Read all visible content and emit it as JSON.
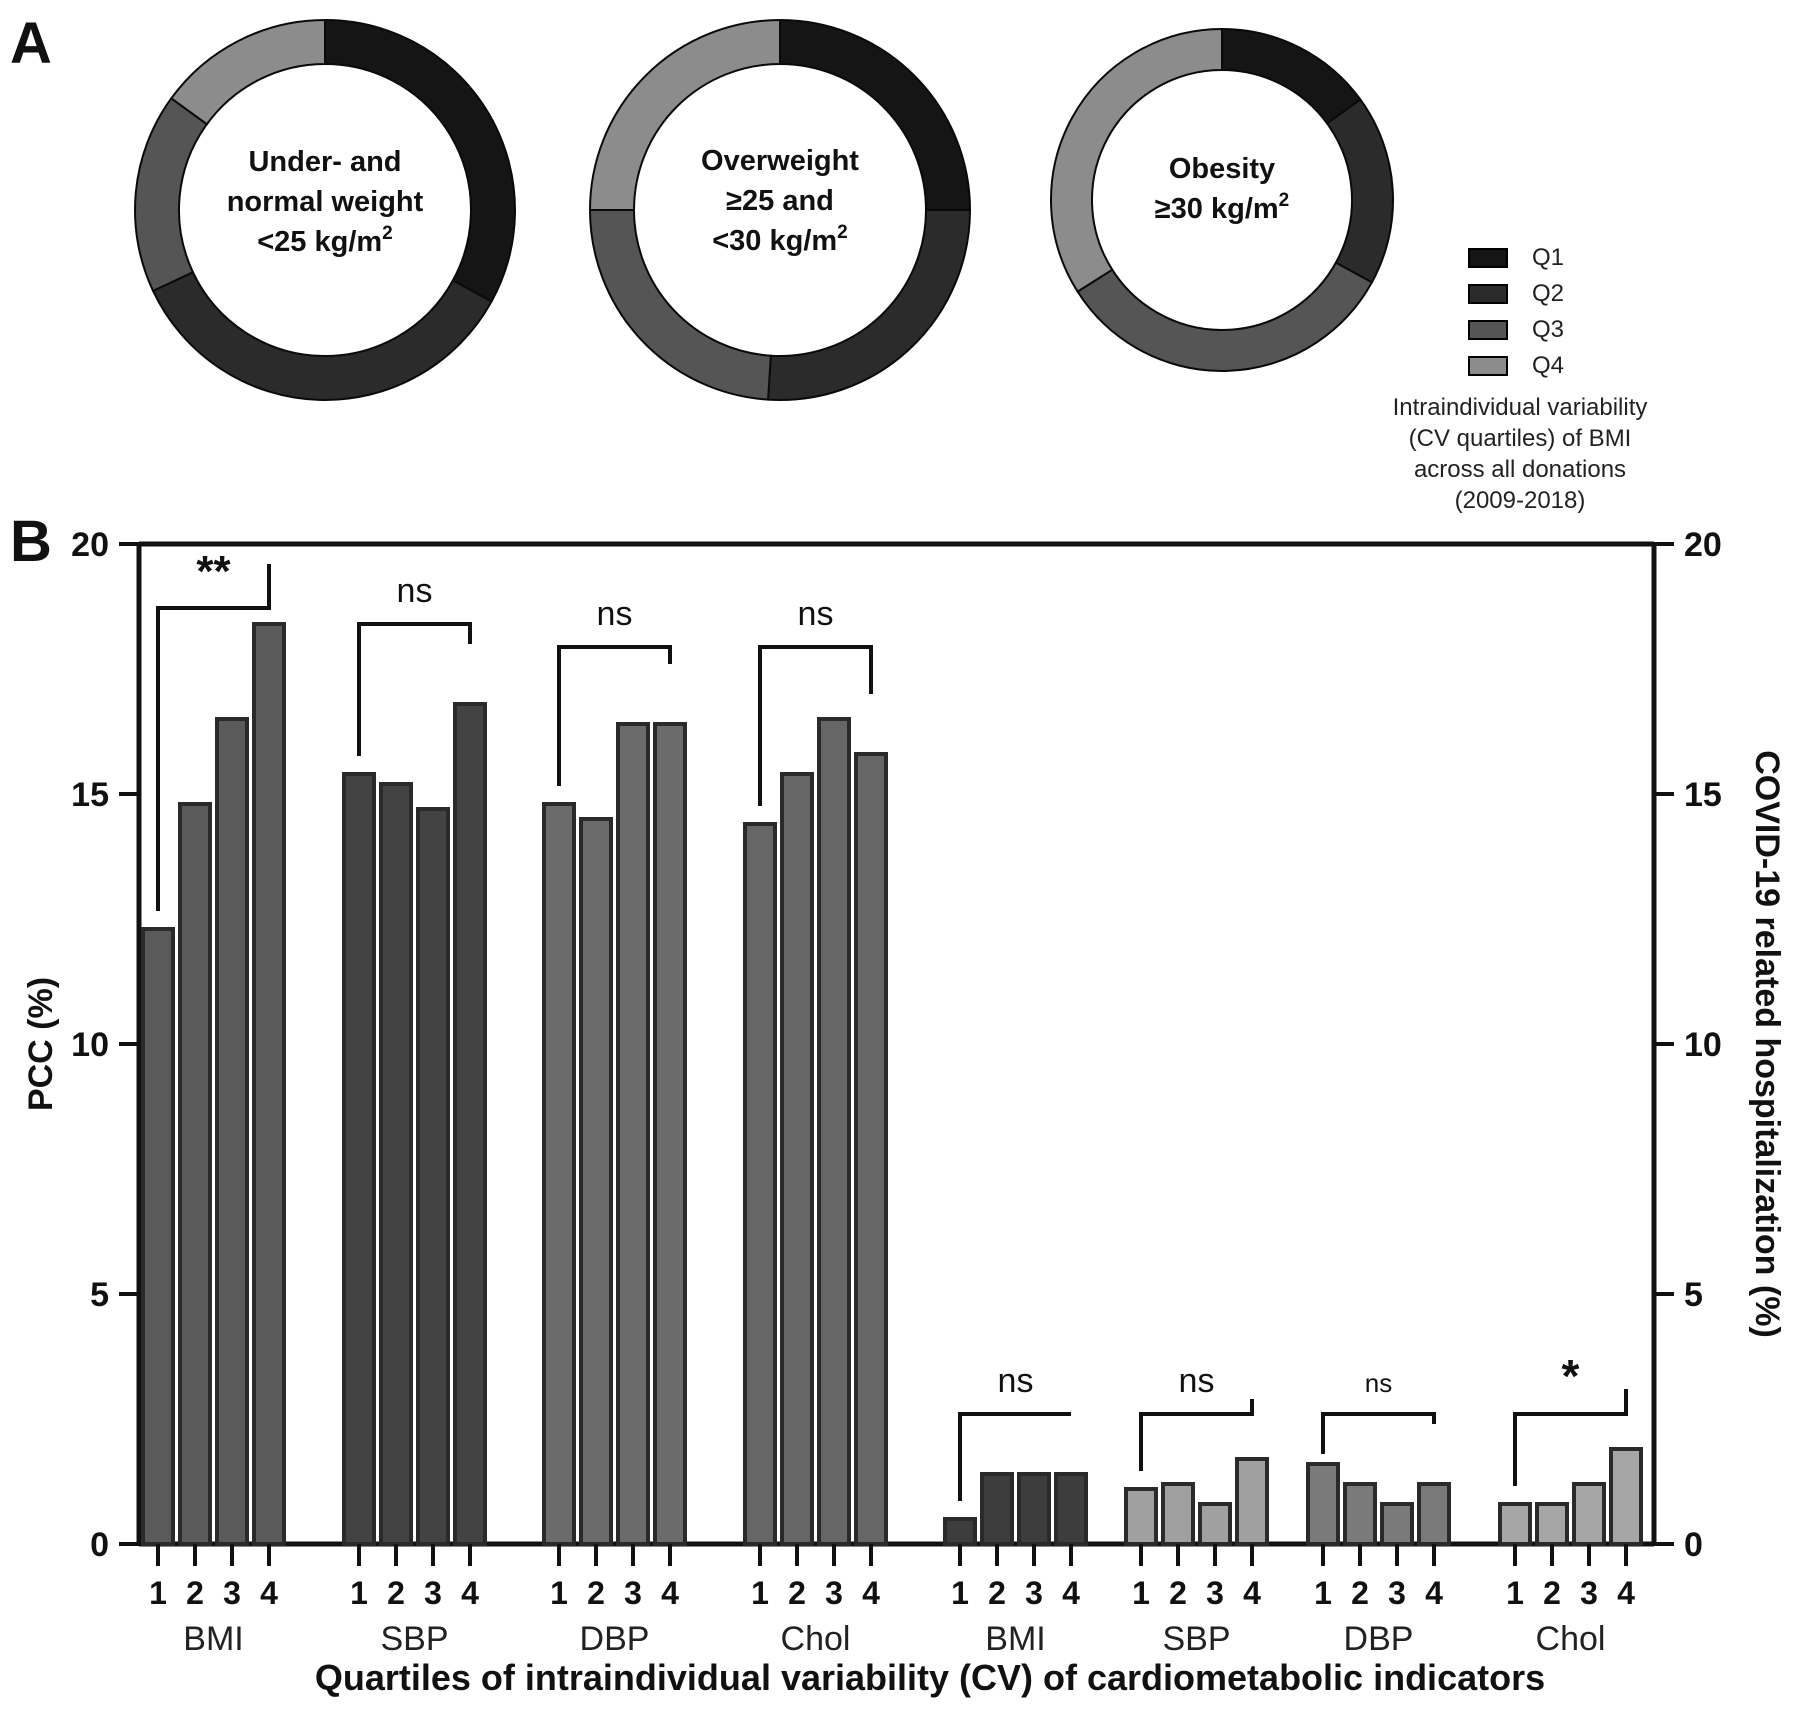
{
  "panels": {
    "a": "A",
    "b": "B"
  },
  "colors": {
    "Q1": "#151515",
    "Q2": "#2b2b2b",
    "Q3": "#555555",
    "Q4": "#8c8c8c"
  },
  "legend": {
    "items": [
      {
        "label": "Q1",
        "color": "#151515"
      },
      {
        "label": "Q2",
        "color": "#2b2b2b"
      },
      {
        "label": "Q3",
        "color": "#555555"
      },
      {
        "label": "Q4",
        "color": "#8c8c8c"
      }
    ],
    "caption": [
      "Intraindividual variability",
      "(CV quartiles) of BMI",
      "across all donations",
      "(2009-2018)"
    ]
  },
  "chart_data": [
    {
      "type": "pie",
      "chart": "donut",
      "labels": [
        "Q1",
        "Q2",
        "Q3",
        "Q4"
      ],
      "donuts": [
        {
          "title_lines": [
            "Under- and",
            "normal weight",
            "<25 kg/m"
          ],
          "title_sup": "2",
          "values": [
            0.33,
            0.35,
            0.17,
            0.15
          ]
        },
        {
          "title_lines": [
            "Overweight",
            "≥25 and",
            "<30 kg/m"
          ],
          "title_sup": "2",
          "values": [
            0.25,
            0.26,
            0.24,
            0.25
          ]
        },
        {
          "title_lines": [
            "Obesity",
            "≥30 kg/m"
          ],
          "title_sup": "2",
          "values": [
            0.15,
            0.18,
            0.33,
            0.34
          ]
        }
      ]
    },
    {
      "type": "bar",
      "ylabel_left": "PCC (%)",
      "ylabel_right": "COVID-19  related hospitalization (%)",
      "xlabel": "Quartiles of intraindividual variability (CV) of cardiometabolic indicators",
      "ylim": [
        0,
        20
      ],
      "yticks": [
        0,
        5,
        10,
        15,
        20
      ],
      "quartile_labels": [
        "1",
        "2",
        "3",
        "4"
      ],
      "groups": [
        {
          "name": "BMI",
          "axis": "PCC",
          "values": [
            12.3,
            14.8,
            16.5,
            18.4
          ],
          "sig": "**"
        },
        {
          "name": "SBP",
          "axis": "PCC",
          "values": [
            15.4,
            15.2,
            14.7,
            16.8
          ],
          "sig": "ns"
        },
        {
          "name": "DBP",
          "axis": "PCC",
          "values": [
            14.8,
            14.5,
            16.4,
            16.4
          ],
          "sig": "ns"
        },
        {
          "name": "Chol",
          "axis": "PCC",
          "values": [
            14.4,
            15.4,
            16.5,
            15.8
          ],
          "sig": "ns"
        },
        {
          "name": "BMI",
          "axis": "hospitalization",
          "values": [
            0.5,
            1.4,
            1.4,
            1.4
          ],
          "sig": "ns"
        },
        {
          "name": "SBP",
          "axis": "hospitalization",
          "values": [
            1.1,
            1.2,
            0.8,
            1.7
          ],
          "sig": "ns"
        },
        {
          "name": "DBP",
          "axis": "hospitalization",
          "values": [
            1.6,
            1.2,
            0.8,
            1.2
          ],
          "sig": "ns"
        },
        {
          "name": "Chol",
          "axis": "hospitalization",
          "values": [
            0.8,
            0.8,
            1.2,
            1.9
          ],
          "sig": "*"
        }
      ],
      "group_colors": [
        "#5a5a5a",
        "#434343",
        "#6b6b6b",
        "#666666",
        "#3d3d3d",
        "#a0a0a0",
        "#7a7a7a",
        "#a6a6a6"
      ]
    }
  ]
}
